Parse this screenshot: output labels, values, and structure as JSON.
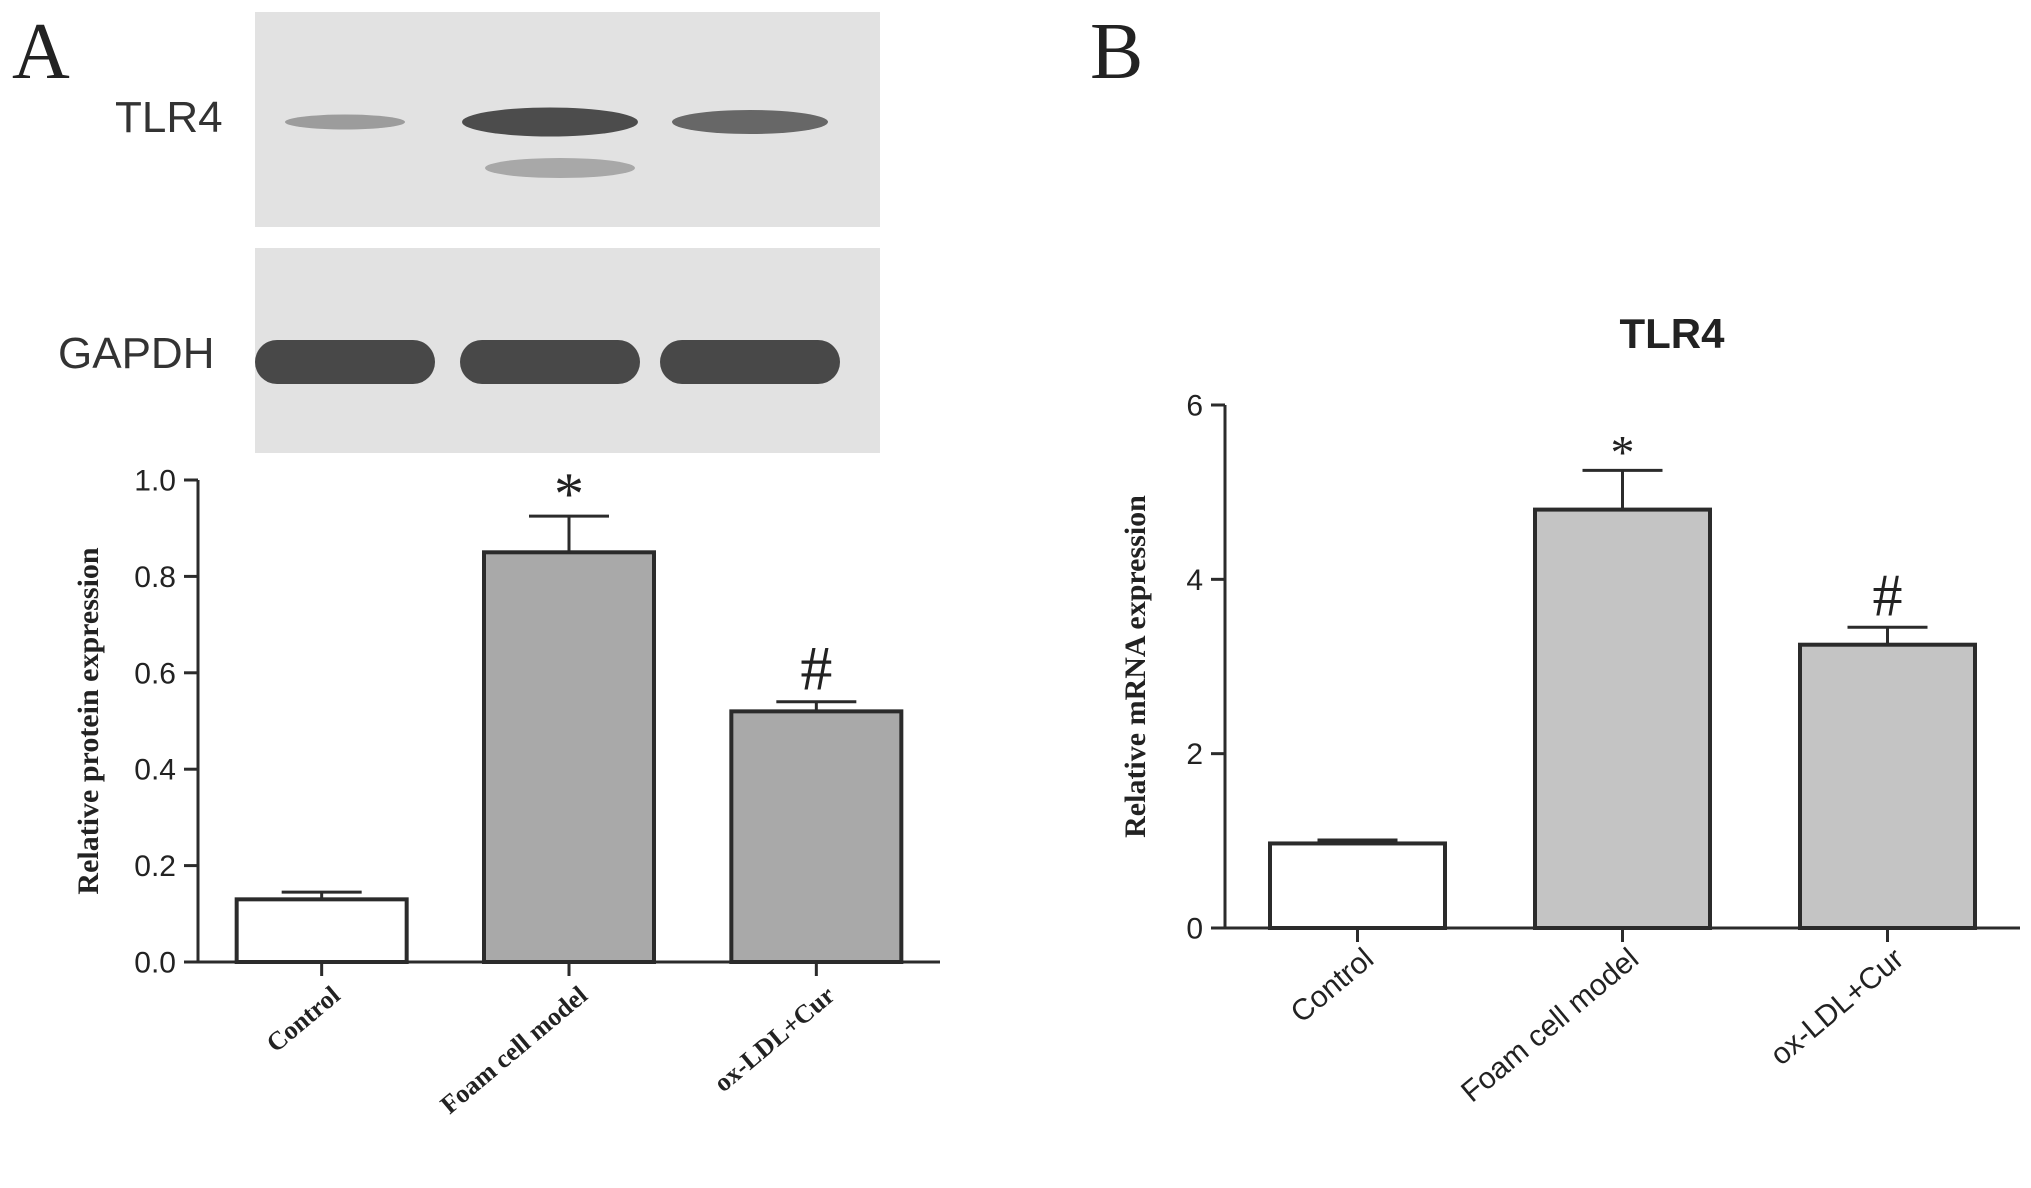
{
  "panels": {
    "a_letter": "A",
    "b_letter": "B"
  },
  "blot": {
    "tlr4_label": "TLR4",
    "gapdh_label": "GAPDH",
    "tlr4_intensity": [
      0.25,
      0.95,
      0.7
    ],
    "gapdh_intensity": [
      0.9,
      0.9,
      0.9
    ]
  },
  "colors": {
    "axis": "#2b2b2b",
    "bar_control": "#ffffff",
    "bar_a": "#a9a9a9",
    "bar_b": "#c4c4c4",
    "blot_bg": "#e2e2e2",
    "band": "#3c3c3c"
  },
  "chart_data": [
    {
      "type": "bar",
      "title": "",
      "ylabel": "Relative protein expression",
      "xlabel": "",
      "categories": [
        "Control",
        "Foam cell model",
        "ox-LDL+Cur"
      ],
      "values": [
        0.13,
        0.85,
        0.52
      ],
      "errors": [
        0.015,
        0.075,
        0.02
      ],
      "annotations": [
        "",
        "*",
        "#"
      ],
      "ylim": [
        0,
        1.0
      ],
      "yticks": [
        "0.0",
        "0.2",
        "0.4",
        "0.6",
        "0.8",
        "1.0"
      ],
      "tick_values": [
        0,
        0.2,
        0.4,
        0.6,
        0.8,
        1.0
      ],
      "fill_colors": [
        "#ffffff",
        "#a9a9a9",
        "#a9a9a9"
      ],
      "grid": false,
      "legend": "none"
    },
    {
      "type": "bar",
      "title": "TLR4",
      "ylabel": "Relative mRNA expression",
      "xlabel": "",
      "categories": [
        "Control",
        "Foam cell model",
        "ox-LDL+Cur"
      ],
      "values": [
        0.97,
        4.8,
        3.25
      ],
      "errors": [
        0.04,
        0.45,
        0.2
      ],
      "annotations": [
        "",
        "*",
        "#"
      ],
      "ylim": [
        0,
        6
      ],
      "yticks": [
        "0",
        "2",
        "4",
        "6"
      ],
      "tick_values": [
        0,
        2,
        4,
        6
      ],
      "fill_colors": [
        "#ffffff",
        "#c4c4c4",
        "#c4c4c4"
      ],
      "grid": false,
      "legend": "none"
    }
  ]
}
